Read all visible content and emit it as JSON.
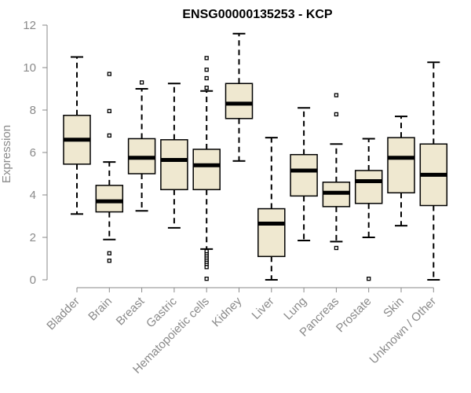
{
  "colors": {
    "box_fill": "#efe8d0",
    "box_stroke": "#000000",
    "axis": "#8a8a8a",
    "text": "#8a8a8a",
    "title": "#000000"
  },
  "chart_data": {
    "type": "boxplot",
    "title": "ENSG00000135253 - KCP",
    "xlabel": "",
    "ylabel": "Expression",
    "ylim": [
      0,
      12
    ],
    "yticks": [
      0,
      2,
      4,
      6,
      8,
      10,
      12
    ],
    "categories": [
      "Bladder",
      "Brain",
      "Breast",
      "Gastric",
      "Hematopoietic cells",
      "Kidney",
      "Liver",
      "Lung",
      "Pancreas",
      "Prostate",
      "Skin",
      "Unknown / Other"
    ],
    "boxes": [
      {
        "lo": 3.1,
        "q1": 5.45,
        "median": 6.6,
        "q3": 7.75,
        "hi": 10.5,
        "outliers": []
      },
      {
        "lo": 1.9,
        "q1": 3.2,
        "median": 3.7,
        "q3": 4.45,
        "hi": 5.55,
        "outliers": [
          0.9,
          1.25,
          6.8,
          7.95,
          9.7
        ]
      },
      {
        "lo": 3.25,
        "q1": 5.0,
        "median": 5.75,
        "q3": 6.65,
        "hi": 9.0,
        "outliers": [
          9.3
        ]
      },
      {
        "lo": 2.45,
        "q1": 4.25,
        "median": 5.65,
        "q3": 6.6,
        "hi": 9.25,
        "outliers": []
      },
      {
        "lo": 1.45,
        "q1": 4.25,
        "median": 5.4,
        "q3": 6.15,
        "hi": 8.9,
        "outliers": [
          0.05,
          0.6,
          0.75,
          0.85,
          0.95,
          1.05,
          1.15,
          1.25,
          1.35,
          9.05,
          9.5,
          9.9,
          10.45
        ]
      },
      {
        "lo": 5.6,
        "q1": 7.6,
        "median": 8.3,
        "q3": 9.25,
        "hi": 11.6,
        "outliers": []
      },
      {
        "lo": 0.0,
        "q1": 1.1,
        "median": 2.65,
        "q3": 3.35,
        "hi": 6.7,
        "outliers": []
      },
      {
        "lo": 1.85,
        "q1": 3.95,
        "median": 5.15,
        "q3": 5.9,
        "hi": 8.1,
        "outliers": []
      },
      {
        "lo": 1.8,
        "q1": 3.45,
        "median": 4.1,
        "q3": 4.6,
        "hi": 6.4,
        "outliers": [
          1.5,
          7.8,
          8.7
        ]
      },
      {
        "lo": 2.0,
        "q1": 3.6,
        "median": 4.65,
        "q3": 5.15,
        "hi": 6.65,
        "outliers": [
          0.05
        ]
      },
      {
        "lo": 2.55,
        "q1": 4.1,
        "median": 5.75,
        "q3": 6.7,
        "hi": 7.7,
        "outliers": []
      },
      {
        "lo": 0.0,
        "q1": 3.5,
        "median": 4.95,
        "q3": 6.4,
        "hi": 10.25,
        "outliers": []
      }
    ]
  }
}
